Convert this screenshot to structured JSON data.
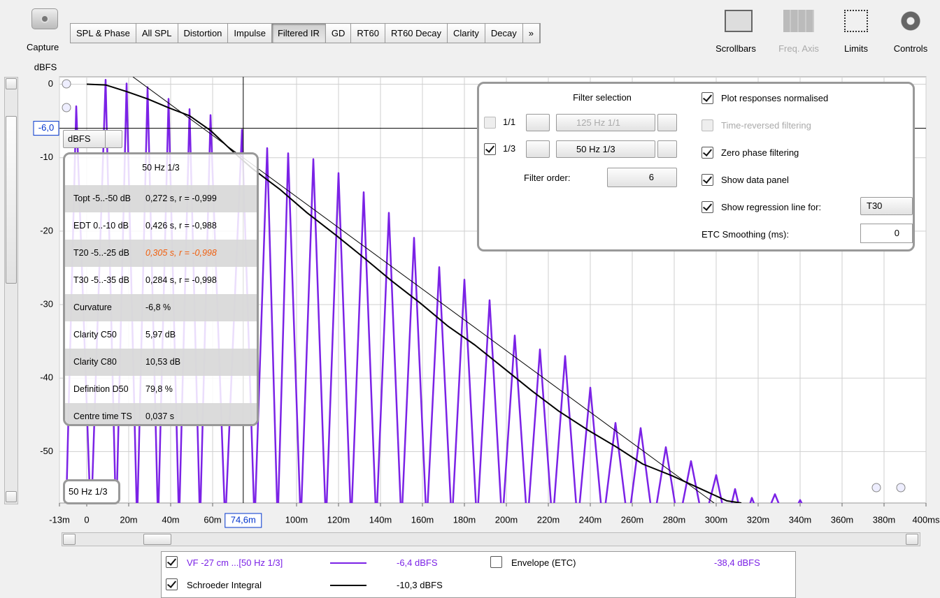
{
  "toolbar": {
    "capture": "Capture",
    "tabs": [
      "SPL & Phase",
      "All SPL",
      "Distortion",
      "Impulse",
      "Filtered IR",
      "GD",
      "RT60",
      "RT60 Decay",
      "Clarity",
      "Decay",
      "»"
    ],
    "tools": [
      "Scrollbars",
      "Freq. Axis",
      "Limits",
      "Controls"
    ]
  },
  "plot_controls": {
    "unit": "dBFS",
    "band_label": "50 Hz 1/3"
  },
  "chart_data": {
    "type": "line",
    "y_label": "dBFS",
    "xlim": [
      -13,
      400
    ],
    "ylim": [
      -57,
      1
    ],
    "xticks": [
      {
        "value": -13,
        "label": "-13m"
      },
      0,
      {
        "value": 20,
        "label": "20m"
      },
      {
        "value": 40,
        "label": "40m"
      },
      {
        "value": 60,
        "label": "60m"
      },
      {
        "value": 100,
        "label": "100m"
      },
      {
        "value": 120,
        "label": "120m"
      },
      {
        "value": 140,
        "label": "140m"
      },
      {
        "value": 160,
        "label": "160m"
      },
      {
        "value": 180,
        "label": "180m"
      },
      {
        "value": 200,
        "label": "200m"
      },
      {
        "value": 220,
        "label": "220m"
      },
      {
        "value": 240,
        "label": "240m"
      },
      {
        "value": 260,
        "label": "260m"
      },
      {
        "value": 280,
        "label": "280m"
      },
      {
        "value": 300,
        "label": "300m"
      },
      {
        "value": 320,
        "label": "320m"
      },
      {
        "value": 340,
        "label": "340m"
      },
      {
        "value": 360,
        "label": "360m"
      },
      {
        "value": 380,
        "label": "380m"
      },
      {
        "value": 400,
        "label": "400ms"
      }
    ],
    "yticks": [
      0,
      -10,
      -20,
      -30,
      -40,
      -50
    ],
    "grid": true,
    "cursor": {
      "x": {
        "value": 74.6,
        "label": "74,6m"
      },
      "y": {
        "value": -6.0,
        "label": "-6,0"
      }
    },
    "series": [
      {
        "color": "#7b22e6",
        "x": [
          -10,
          -5,
          2,
          9,
          14,
          19,
          24,
          29,
          34,
          39,
          44,
          49,
          54,
          59,
          66,
          74,
          80,
          86,
          91,
          96,
          102,
          108,
          114,
          120,
          126,
          132,
          138,
          144,
          150,
          156,
          162,
          168,
          174,
          180,
          186,
          192,
          198,
          204,
          210,
          216,
          222,
          228,
          234,
          240,
          246,
          252,
          258,
          264,
          270,
          276,
          282,
          288,
          294,
          300,
          305,
          309,
          313,
          317,
          322,
          328,
          334,
          340,
          346
        ],
        "values": [
          -60,
          -3,
          -60,
          0.6,
          -60,
          0.1,
          -60,
          -0.4,
          -60,
          -2.0,
          -60,
          -3.4,
          -60,
          -4.2,
          -60,
          -6.2,
          -60,
          -8.7,
          -60,
          -9.4,
          -60,
          -10.2,
          -60,
          -12.1,
          -60,
          -14.7,
          -60,
          -17.5,
          -60,
          -20.9,
          -60,
          -24.9,
          -60,
          -26.6,
          -60,
          -29.4,
          -60,
          -34.2,
          -60,
          -36.1,
          -60,
          -37.0,
          -60,
          -41.3,
          -60,
          -46.1,
          -60,
          -46.8,
          -60,
          -49.4,
          -60,
          -51.3,
          -60,
          -53.2,
          -60,
          -55.1,
          -60,
          -56.3,
          -60,
          -55.8,
          -60,
          -56.6,
          -60
        ]
      },
      {
        "color": "#000000",
        "x": [
          0,
          9,
          19,
          29,
          39,
          49,
          59,
          69,
          79,
          92,
          105,
          119,
          132,
          145,
          159,
          172,
          185,
          199,
          212,
          225,
          239,
          252,
          265,
          279,
          292,
          305,
          312
        ],
        "values": [
          0,
          -0.1,
          -1,
          -2,
          -3.2,
          -4.3,
          -6.3,
          -9,
          -11.5,
          -14.3,
          -17.5,
          -20.6,
          -23.6,
          -26.7,
          -29.8,
          -32.9,
          -35.5,
          -38.7,
          -41.7,
          -44.5,
          -47.1,
          -49.3,
          -51.7,
          -53.3,
          -55,
          -56.7,
          -57
        ]
      },
      {
        "color": "#000000",
        "x": [
          22,
          299
        ],
        "values": [
          1,
          -57
        ]
      }
    ],
    "legend": [
      {
        "name": "VF -27 cm ...[50 Hz 1/3]",
        "checked": true,
        "color": "#7b22e6",
        "readout": "-6,4 dBFS"
      },
      {
        "name": "Envelope (ETC)",
        "checked": false,
        "readout": "-38,4 dBFS"
      },
      {
        "name": "Schroeder Integral",
        "checked": true,
        "color": "#000000",
        "readout": "-10,3 dBFS"
      }
    ]
  },
  "data_panel": {
    "title": "50 Hz 1/3",
    "rows": [
      [
        "Topt -5..-50 dB",
        "0,272 s,  r = -0,999"
      ],
      [
        "EDT  0..-10 dB",
        "0,426 s, r = -0,988"
      ],
      [
        "T20 -5..-25 dB",
        "0,305 s,  r = -0,998"
      ],
      [
        "T30 -5..-35 dB",
        "0,284 s,  r = -0,998"
      ],
      [
        "Curvature",
        "-6,8 %"
      ],
      [
        "Clarity C50",
        "5,97 dB"
      ],
      [
        "Clarity C80",
        "10,53 dB"
      ],
      [
        "Definition D50",
        "79,8 %"
      ],
      [
        "Centre time TS",
        "0,037 s"
      ]
    ]
  },
  "filter_panel": {
    "title": "Filter selection",
    "bands": [
      {
        "checked": false,
        "label": "1/1",
        "value": "125 Hz 1/1",
        "enabled": false
      },
      {
        "checked": true,
        "label": "1/3",
        "value": "50 Hz 1/3",
        "enabled": true
      }
    ],
    "filter_order": {
      "label": "Filter order:",
      "value": "6"
    },
    "options": [
      {
        "label": "Plot responses normalised",
        "checked": true,
        "enabled": true
      },
      {
        "label": "Time-reversed filtering",
        "checked": false,
        "enabled": false
      },
      {
        "label": "Zero phase filtering",
        "checked": true,
        "enabled": true
      },
      {
        "label": "Show data panel",
        "checked": true,
        "enabled": true
      },
      {
        "label": "Show regression line for:",
        "checked": true,
        "enabled": true,
        "choice": "T30"
      }
    ],
    "etc_smoothing": {
      "label": "ETC Smoothing (ms):",
      "value": "0"
    }
  }
}
